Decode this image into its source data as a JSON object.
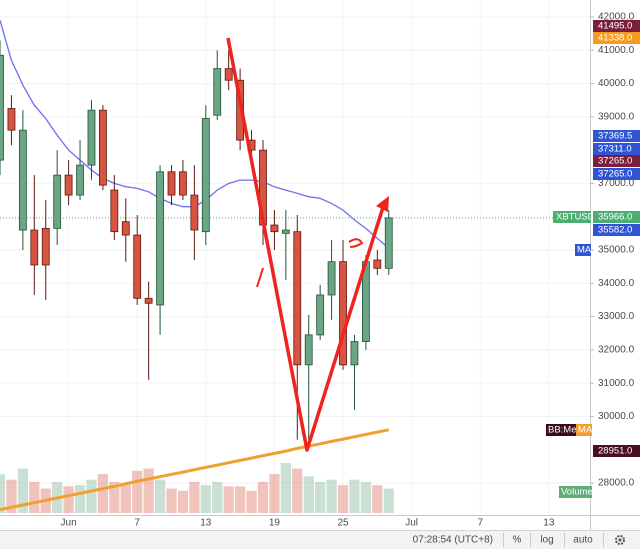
{
  "chart_data": {
    "type": "candlestick",
    "symbol": "XBTUSD",
    "last_price": {
      "value": 35966,
      "label": "35966.0"
    },
    "x": [
      -5,
      -4,
      -3,
      -2,
      -1,
      0,
      1,
      2,
      3,
      4,
      5,
      6,
      7,
      8,
      9,
      10,
      11,
      12,
      13,
      14,
      15,
      16,
      17,
      18,
      19,
      20,
      21,
      22,
      23,
      24,
      25,
      26,
      27,
      28,
      29
    ],
    "open": [
      37700,
      39250,
      35600,
      35600,
      35650,
      35650,
      37250,
      36650,
      37550,
      39200,
      36800,
      35850,
      35450,
      33550,
      33350,
      37350,
      37350,
      36650,
      35550,
      39050,
      40450,
      40100,
      38300,
      38000,
      35750,
      35500,
      35550,
      31550,
      32450,
      33650,
      34650,
      31550,
      32250,
      34700,
      34450
    ],
    "high": [
      41300,
      39650,
      39200,
      37250,
      36500,
      38000,
      37700,
      38300,
      39500,
      39350,
      37250,
      36550,
      36050,
      34050,
      37550,
      37550,
      37700,
      37550,
      39350,
      41000,
      41000,
      40450,
      38600,
      38300,
      36200,
      36200,
      36050,
      33050,
      33950,
      35300,
      35300,
      32450,
      34850,
      35000,
      36200
    ],
    "low": [
      37250,
      38150,
      35000,
      33650,
      33500,
      35150,
      36350,
      36500,
      37100,
      36800,
      35300,
      34650,
      33350,
      31100,
      32450,
      36350,
      36500,
      34700,
      35150,
      38900,
      39800,
      38000,
      37550,
      35150,
      35000,
      34100,
      29300,
      29300,
      32300,
      32900,
      31400,
      30200,
      32000,
      34250,
      34250
    ],
    "close": [
      40850,
      38600,
      38600,
      34550,
      34550,
      37250,
      36650,
      37550,
      39200,
      36950,
      35550,
      35450,
      33550,
      33400,
      37350,
      36650,
      36650,
      35600,
      38950,
      40450,
      40100,
      38300,
      38000,
      35750,
      35550,
      35600,
      31550,
      32450,
      33650,
      34650,
      31550,
      32250,
      34650,
      34450,
      35966
    ],
    "up_color": "#6ba583",
    "down_color": "#d75442",
    "series": [
      {
        "name": "MA",
        "color": "#6f6ff0",
        "values": [
          41900,
          40700,
          39950,
          39350,
          38950,
          38450,
          38000,
          37700,
          37400,
          37150,
          37000,
          36900,
          36850,
          36750,
          36550,
          36400,
          36300,
          36300,
          36500,
          36800,
          37000,
          37100,
          37100,
          37050,
          36900,
          36800,
          36700,
          36600,
          36550,
          36400,
          36200,
          35900,
          35650,
          35350,
          35050
        ]
      },
      {
        "name": "MA",
        "tag": "BB:Me",
        "color": "#f0a030",
        "values": [
          27200,
          27270,
          27340,
          27410,
          27480,
          27550,
          27620,
          27690,
          27760,
          27830,
          27900,
          27980,
          28050,
          28120,
          28190,
          28260,
          28330,
          28400,
          28470,
          28540,
          28610,
          28680,
          28750,
          28820,
          28890,
          28960,
          29040,
          29110,
          29180,
          29250,
          29320,
          29390,
          29460,
          29530,
          29600
        ]
      }
    ],
    "volume": {
      "name": "Volume",
      "values": [
        35,
        30,
        40,
        28,
        22,
        28,
        24,
        25,
        30,
        35,
        28,
        26,
        38,
        40,
        30,
        22,
        20,
        28,
        25,
        28,
        24,
        24,
        20,
        28,
        35,
        45,
        40,
        33,
        28,
        30,
        25,
        30,
        28,
        25,
        22
      ]
    },
    "price_labels": [
      {
        "value": 41495,
        "label": "41495.0",
        "color": "#7b1e3a"
      },
      {
        "value": 41338,
        "label": "41338.0",
        "color": "#f89a1c"
      },
      {
        "value": 37369.5,
        "label": "37369.5",
        "color": "#2f55d4"
      },
      {
        "value": 37311,
        "label": "37311.0",
        "color": "#2f55d4"
      },
      {
        "value": 37265,
        "label": "37265.0",
        "color": "#7b1e3a"
      },
      {
        "value": 37265,
        "label": "37265.0",
        "color": "#2f55d4"
      },
      {
        "value": 35582,
        "label": "35582.0",
        "color": "#2f55d4"
      },
      {
        "value": 28951,
        "label": "28951.0",
        "color": "#4a0e1f"
      }
    ],
    "xlim": [
      -5,
      46.6
    ],
    "ylim": [
      27040,
      42510
    ],
    "xticks": [
      {
        "value": 1,
        "label": "Jun"
      },
      7,
      13,
      19,
      25,
      {
        "value": 31,
        "label": "Jul"
      },
      {
        "value": 37,
        "label": "7"
      },
      {
        "value": 43,
        "label": "13"
      }
    ],
    "yticks": [
      {
        "value": 42000,
        "label": "42000.0"
      },
      {
        "value": 41000,
        "label": "41000.0"
      },
      {
        "value": 40000,
        "label": "40000.0"
      },
      {
        "value": 39000,
        "label": "39000.0"
      },
      {
        "value": 37000,
        "label": "37000.0"
      },
      {
        "value": 35000,
        "label": "35000.0"
      },
      {
        "value": 34000,
        "label": "34000.0"
      },
      {
        "value": 33000,
        "label": "33000.0"
      },
      {
        "value": 32000,
        "label": "32000.0"
      },
      {
        "value": 31000,
        "label": "31000.0"
      },
      {
        "value": 30000,
        "label": "30000.0"
      },
      {
        "value": 28000,
        "label": "28000.0"
      }
    ],
    "time": "07:28:54 (UTC+8)",
    "scale_buttons": [
      "%",
      "log",
      "auto"
    ]
  }
}
